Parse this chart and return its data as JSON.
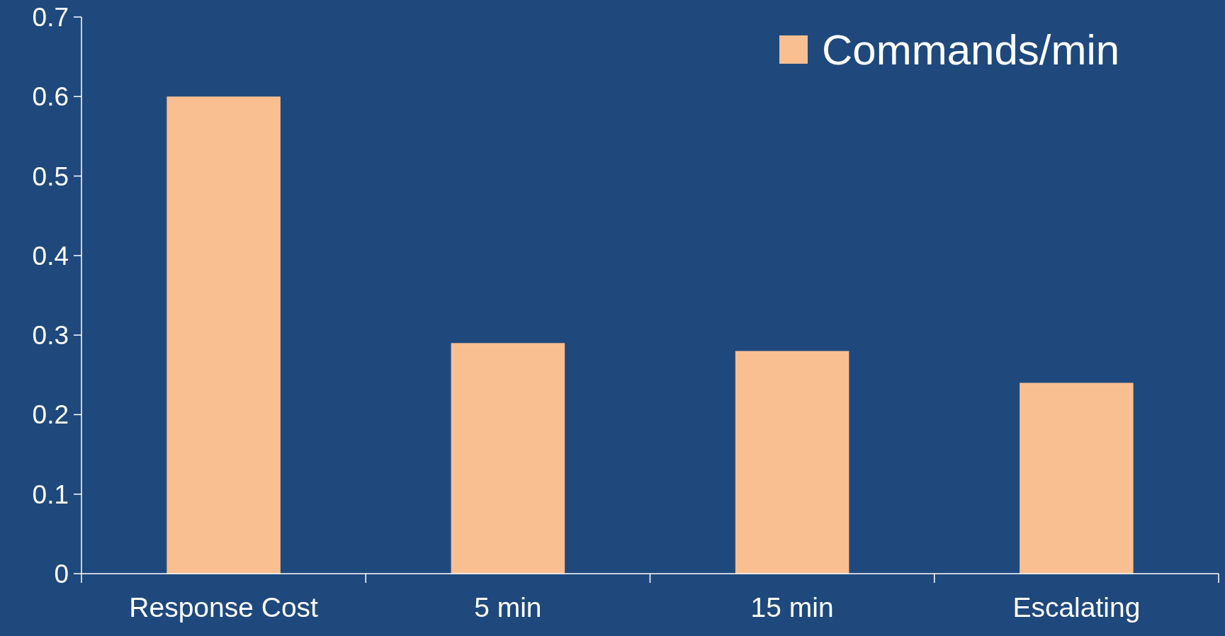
{
  "chart_data": {
    "type": "bar",
    "categories": [
      "Response Cost",
      "5 min",
      "15 min",
      "Escalating"
    ],
    "series": [
      {
        "name": "Commands/min",
        "color": "#f9bf91",
        "values": [
          0.6,
          0.29,
          0.28,
          0.24
        ]
      }
    ],
    "ylim": [
      0,
      0.7
    ],
    "yticks": [
      0,
      0.1,
      0.2,
      0.3,
      0.4,
      0.5,
      0.6,
      0.7
    ],
    "grid": false,
    "legend": "top right"
  }
}
